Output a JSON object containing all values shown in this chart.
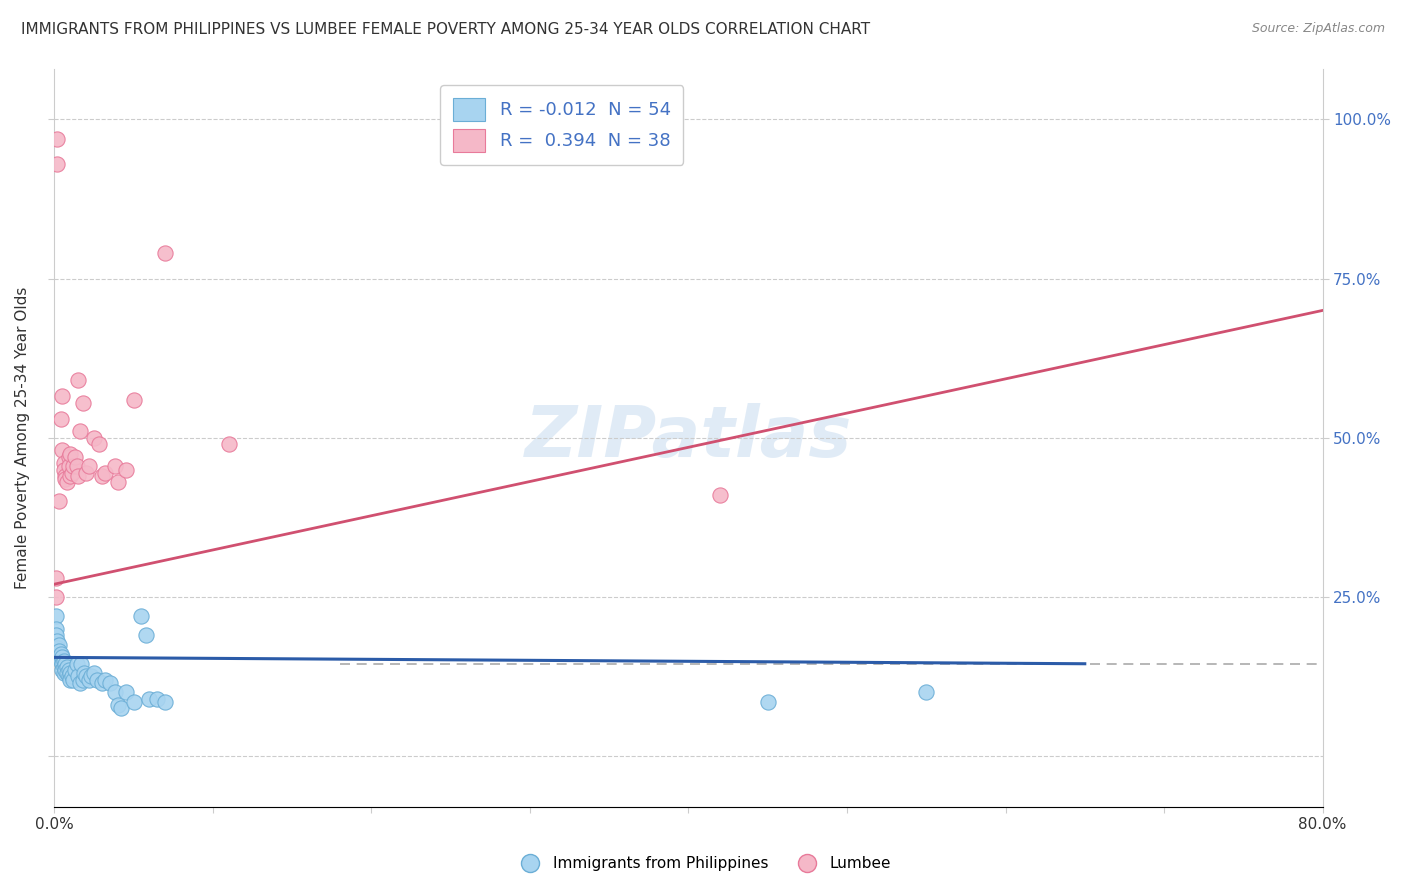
{
  "title": "IMMIGRANTS FROM PHILIPPINES VS LUMBEE FEMALE POVERTY AMONG 25-34 YEAR OLDS CORRELATION CHART",
  "source": "Source: ZipAtlas.com",
  "ylabel": "Female Poverty Among 25-34 Year Olds",
  "ytick_labels_right": [
    "100.0%",
    "75.0%",
    "50.0%",
    "25.0%"
  ],
  "ytick_vals": [
    1.0,
    0.75,
    0.5,
    0.25,
    0.0
  ],
  "ytick_vals_right": [
    1.0,
    0.75,
    0.5,
    0.25
  ],
  "xlim": [
    0.0,
    0.8
  ],
  "ylim": [
    -0.08,
    1.08
  ],
  "watermark": "ZIPatlas",
  "blue_color": "#A8D4F0",
  "pink_color": "#F5B8C8",
  "blue_edge_color": "#6BAED6",
  "pink_edge_color": "#E87A9A",
  "blue_line_color": "#2B5BA8",
  "pink_line_color": "#D05070",
  "blue_scatter": [
    [
      0.001,
      0.22
    ],
    [
      0.001,
      0.2
    ],
    [
      0.001,
      0.19
    ],
    [
      0.002,
      0.18
    ],
    [
      0.002,
      0.17
    ],
    [
      0.002,
      0.16
    ],
    [
      0.003,
      0.175
    ],
    [
      0.003,
      0.165
    ],
    [
      0.003,
      0.155
    ],
    [
      0.004,
      0.16
    ],
    [
      0.004,
      0.15
    ],
    [
      0.005,
      0.155
    ],
    [
      0.005,
      0.145
    ],
    [
      0.005,
      0.135
    ],
    [
      0.006,
      0.15
    ],
    [
      0.006,
      0.14
    ],
    [
      0.006,
      0.13
    ],
    [
      0.007,
      0.145
    ],
    [
      0.007,
      0.135
    ],
    [
      0.008,
      0.14
    ],
    [
      0.008,
      0.13
    ],
    [
      0.009,
      0.135
    ],
    [
      0.009,
      0.125
    ],
    [
      0.01,
      0.13
    ],
    [
      0.01,
      0.12
    ],
    [
      0.011,
      0.125
    ],
    [
      0.012,
      0.12
    ],
    [
      0.013,
      0.135
    ],
    [
      0.014,
      0.145
    ],
    [
      0.015,
      0.125
    ],
    [
      0.016,
      0.115
    ],
    [
      0.017,
      0.145
    ],
    [
      0.018,
      0.12
    ],
    [
      0.019,
      0.13
    ],
    [
      0.02,
      0.125
    ],
    [
      0.022,
      0.12
    ],
    [
      0.023,
      0.125
    ],
    [
      0.025,
      0.13
    ],
    [
      0.027,
      0.12
    ],
    [
      0.03,
      0.115
    ],
    [
      0.032,
      0.12
    ],
    [
      0.035,
      0.115
    ],
    [
      0.038,
      0.1
    ],
    [
      0.04,
      0.08
    ],
    [
      0.042,
      0.075
    ],
    [
      0.045,
      0.1
    ],
    [
      0.05,
      0.085
    ],
    [
      0.055,
      0.22
    ],
    [
      0.058,
      0.19
    ],
    [
      0.06,
      0.09
    ],
    [
      0.065,
      0.09
    ],
    [
      0.07,
      0.085
    ],
    [
      0.45,
      0.085
    ],
    [
      0.55,
      0.1
    ]
  ],
  "pink_scatter": [
    [
      0.001,
      0.28
    ],
    [
      0.001,
      0.25
    ],
    [
      0.002,
      0.97
    ],
    [
      0.002,
      0.93
    ],
    [
      0.003,
      0.4
    ],
    [
      0.004,
      0.53
    ],
    [
      0.005,
      0.565
    ],
    [
      0.005,
      0.48
    ],
    [
      0.006,
      0.46
    ],
    [
      0.006,
      0.45
    ],
    [
      0.007,
      0.44
    ],
    [
      0.007,
      0.435
    ],
    [
      0.008,
      0.43
    ],
    [
      0.009,
      0.47
    ],
    [
      0.009,
      0.455
    ],
    [
      0.01,
      0.44
    ],
    [
      0.01,
      0.475
    ],
    [
      0.011,
      0.445
    ],
    [
      0.012,
      0.455
    ],
    [
      0.013,
      0.47
    ],
    [
      0.014,
      0.455
    ],
    [
      0.015,
      0.44
    ],
    [
      0.015,
      0.59
    ],
    [
      0.016,
      0.51
    ],
    [
      0.018,
      0.555
    ],
    [
      0.02,
      0.445
    ],
    [
      0.022,
      0.455
    ],
    [
      0.025,
      0.5
    ],
    [
      0.028,
      0.49
    ],
    [
      0.03,
      0.44
    ],
    [
      0.032,
      0.445
    ],
    [
      0.038,
      0.455
    ],
    [
      0.04,
      0.43
    ],
    [
      0.045,
      0.45
    ],
    [
      0.05,
      0.56
    ],
    [
      0.07,
      0.79
    ],
    [
      0.11,
      0.49
    ],
    [
      0.42,
      0.41
    ]
  ],
  "blue_line_x": [
    0.0,
    0.65
  ],
  "blue_line_y": [
    0.155,
    0.145
  ],
  "pink_line_x": [
    0.0,
    0.8
  ],
  "pink_line_y": [
    0.27,
    0.7
  ],
  "hline_y": 0.145,
  "hline_x_start": 0.18,
  "hline_x_end": 0.8
}
